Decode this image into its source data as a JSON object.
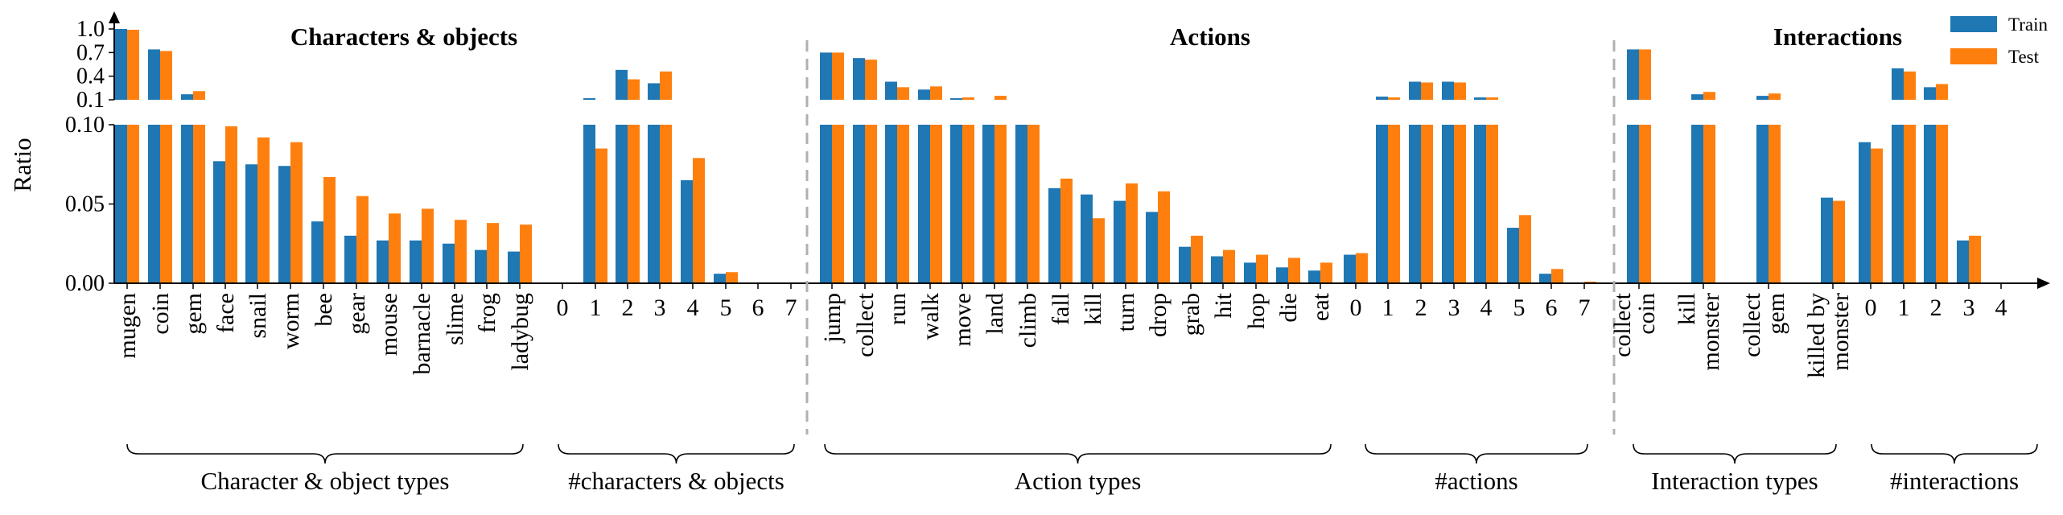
{
  "chart_data": {
    "type": "bar",
    "ylabel": "Ratio",
    "y_axis": {
      "scale": "broken",
      "lower_range": [
        0,
        0.1
      ],
      "upper_range": [
        0.1,
        1.0
      ],
      "lower_ticks": [
        "0.00",
        "0.05",
        "0.10"
      ],
      "upper_ticks": [
        "1.0",
        "0.7",
        "0.4",
        "0.1"
      ]
    },
    "grid": false,
    "legend": {
      "placement": "top-right",
      "entries": [
        {
          "name": "Train",
          "color": "#1f77b4"
        },
        {
          "name": "Test",
          "color": "#ff7f0e"
        }
      ]
    },
    "series_names": [
      "Train",
      "Test"
    ],
    "colors": {
      "train": "#1f77b4",
      "test": "#ff7f0e",
      "divider": "#b0b0b0"
    },
    "panels": [
      {
        "title": "Characters & objects",
        "groups": [
          {
            "label": "Character & object types",
            "categories": [
              "mugen",
              "coin",
              "gem",
              "face",
              "snail",
              "worm",
              "bee",
              "gear",
              "mouse",
              "barnacle",
              "slime",
              "frog",
              "ladybug"
            ],
            "train": [
              1.0,
              0.74,
              0.17,
              0.077,
              0.075,
              0.074,
              0.039,
              0.03,
              0.027,
              0.027,
              0.025,
              0.021,
              0.02
            ],
            "test": [
              0.99,
              0.72,
              0.21,
              0.099,
              0.092,
              0.089,
              0.067,
              0.055,
              0.044,
              0.047,
              0.04,
              0.038,
              0.037
            ]
          },
          {
            "label": "#characters & objects",
            "categories": [
              "0",
              "1",
              "2",
              "3",
              "4",
              "5",
              "6",
              "7"
            ],
            "train": [
              0,
              0.12,
              0.48,
              0.31,
              0.065,
              0.006,
              0,
              0
            ],
            "test": [
              0,
              0.085,
              0.36,
              0.46,
              0.079,
              0.007,
              0,
              0
            ]
          }
        ]
      },
      {
        "title": "Actions",
        "groups": [
          {
            "label": "Action types",
            "categories": [
              "jump",
              "collect",
              "run",
              "walk",
              "move",
              "land",
              "climb",
              "fall",
              "kill",
              "turn",
              "drop",
              "grab",
              "hit",
              "hop",
              "die",
              "eat"
            ],
            "train": [
              0.7,
              0.63,
              0.33,
              0.23,
              0.12,
              0.1,
              0.1,
              0.06,
              0.056,
              0.052,
              0.045,
              0.023,
              0.017,
              0.013,
              0.01,
              0.008
            ],
            "test": [
              0.7,
              0.61,
              0.26,
              0.27,
              0.13,
              0.15,
              0.1,
              0.066,
              0.041,
              0.063,
              0.058,
              0.03,
              0.021,
              0.018,
              0.016,
              0.013
            ]
          },
          {
            "label": "#actions",
            "categories": [
              "0",
              "1",
              "2",
              "3",
              "4",
              "5",
              "6",
              "7"
            ],
            "train": [
              0.018,
              0.14,
              0.33,
              0.33,
              0.13,
              0.035,
              0.006,
              0
            ],
            "test": [
              0.019,
              0.13,
              0.32,
              0.32,
              0.13,
              0.043,
              0.009,
              0.001
            ]
          }
        ]
      },
      {
        "title": "Interactions",
        "groups": [
          {
            "label": "Interaction types",
            "categories": [
              "collect coin",
              "kill monster",
              "collect gem",
              "killed by monster"
            ],
            "categories_multiline": [
              [
                "collect",
                "coin"
              ],
              [
                "kill",
                "monster"
              ],
              [
                "collect",
                "gem"
              ],
              [
                "killed by",
                "monster"
              ]
            ],
            "train": [
              0.74,
              0.17,
              0.15,
              0.054
            ],
            "test": [
              0.74,
              0.2,
              0.18,
              0.052
            ]
          },
          {
            "label": "#interactions",
            "categories": [
              "0",
              "1",
              "2",
              "3",
              "4"
            ],
            "train": [
              0.089,
              0.5,
              0.26,
              0.027,
              0
            ],
            "test": [
              0.085,
              0.46,
              0.3,
              0.03,
              0
            ]
          }
        ]
      }
    ]
  }
}
